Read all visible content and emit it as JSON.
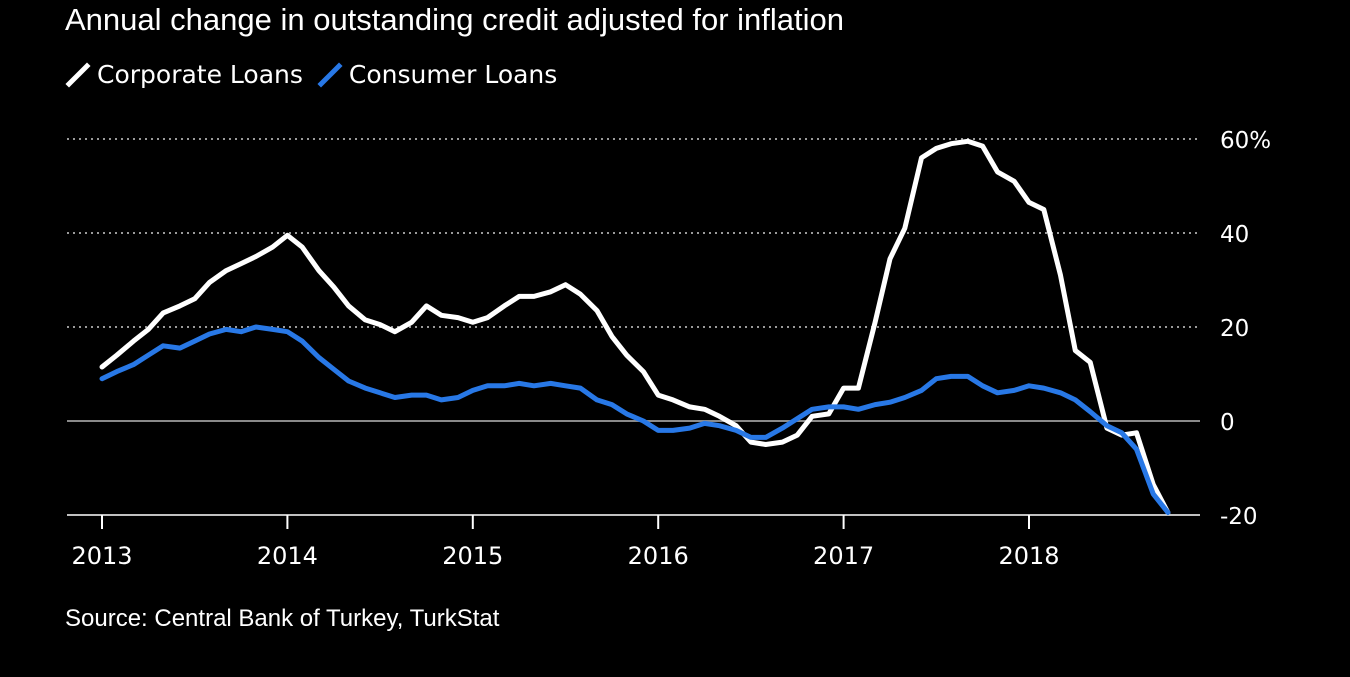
{
  "chart_data": {
    "type": "line",
    "title": "Annual change in outstanding credit adjusted for inflation",
    "source": "Source: Central Bank of Turkey, TurkStat",
    "xlabel": "",
    "ylabel": "",
    "xlim": [
      2013.0,
      2018.9
    ],
    "ylim": [
      -20,
      60
    ],
    "y_ticks": [
      60,
      40,
      20,
      0,
      -20
    ],
    "y_tick_labels": [
      "60%",
      "40",
      "20",
      "0",
      "-20"
    ],
    "x_ticks": [
      2013,
      2014,
      2015,
      2016,
      2017,
      2018
    ],
    "x_tick_labels": [
      "2013",
      "2014",
      "2015",
      "2016",
      "2017",
      "2018"
    ],
    "grid": true,
    "legend_position": "top-left",
    "series": [
      {
        "name": "Corporate Loans",
        "color": "#ffffff",
        "points": [
          [
            2013.0,
            11.5
          ],
          [
            2013.08,
            14
          ],
          [
            2013.17,
            17
          ],
          [
            2013.25,
            19.5
          ],
          [
            2013.33,
            23
          ],
          [
            2013.42,
            24.5
          ],
          [
            2013.5,
            26
          ],
          [
            2013.58,
            29.5
          ],
          [
            2013.67,
            32
          ],
          [
            2013.75,
            33.5
          ],
          [
            2013.83,
            35
          ],
          [
            2013.92,
            37
          ],
          [
            2014.0,
            39.5
          ],
          [
            2014.08,
            37
          ],
          [
            2014.17,
            32
          ],
          [
            2014.25,
            28.5
          ],
          [
            2014.33,
            24.5
          ],
          [
            2014.42,
            21.5
          ],
          [
            2014.5,
            20.5
          ],
          [
            2014.58,
            19
          ],
          [
            2014.67,
            21
          ],
          [
            2014.75,
            24.5
          ],
          [
            2014.83,
            22.5
          ],
          [
            2014.92,
            22
          ],
          [
            2015.0,
            21
          ],
          [
            2015.08,
            22
          ],
          [
            2015.17,
            24.5
          ],
          [
            2015.25,
            26.5
          ],
          [
            2015.33,
            26.5
          ],
          [
            2015.42,
            27.5
          ],
          [
            2015.5,
            29
          ],
          [
            2015.58,
            27
          ],
          [
            2015.67,
            23.5
          ],
          [
            2015.75,
            18
          ],
          [
            2015.83,
            14
          ],
          [
            2015.92,
            10.5
          ],
          [
            2016.0,
            5.5
          ],
          [
            2016.08,
            4.5
          ],
          [
            2016.17,
            3
          ],
          [
            2016.25,
            2.5
          ],
          [
            2016.33,
            1
          ],
          [
            2016.42,
            -1
          ],
          [
            2016.5,
            -4.5
          ],
          [
            2016.58,
            -5
          ],
          [
            2016.67,
            -4.5
          ],
          [
            2016.75,
            -3
          ],
          [
            2016.83,
            1
          ],
          [
            2016.92,
            1.5
          ],
          [
            2017.0,
            7
          ],
          [
            2017.08,
            7
          ],
          [
            2017.17,
            21
          ],
          [
            2017.25,
            34.5
          ],
          [
            2017.33,
            41
          ],
          [
            2017.42,
            56
          ],
          [
            2017.5,
            58
          ],
          [
            2017.58,
            59
          ],
          [
            2017.67,
            59.5
          ],
          [
            2017.75,
            58.5
          ],
          [
            2017.83,
            53
          ],
          [
            2017.92,
            51
          ],
          [
            2018.0,
            46.5
          ],
          [
            2018.08,
            45
          ],
          [
            2018.17,
            31
          ],
          [
            2018.25,
            15
          ],
          [
            2018.33,
            12.5
          ],
          [
            2018.42,
            -1.5
          ],
          [
            2018.5,
            -3
          ],
          [
            2018.58,
            -2.5
          ],
          [
            2018.67,
            -13.5
          ],
          [
            2018.75,
            -19.5
          ]
        ]
      },
      {
        "name": "Consumer Loans",
        "color": "#2878e6",
        "points": [
          [
            2013.0,
            9
          ],
          [
            2013.08,
            10.5
          ],
          [
            2013.17,
            12
          ],
          [
            2013.25,
            14
          ],
          [
            2013.33,
            16
          ],
          [
            2013.42,
            15.5
          ],
          [
            2013.5,
            17
          ],
          [
            2013.58,
            18.5
          ],
          [
            2013.67,
            19.5
          ],
          [
            2013.75,
            19
          ],
          [
            2013.83,
            20
          ],
          [
            2013.92,
            19.5
          ],
          [
            2014.0,
            19
          ],
          [
            2014.08,
            17
          ],
          [
            2014.17,
            13.5
          ],
          [
            2014.25,
            11
          ],
          [
            2014.33,
            8.5
          ],
          [
            2014.42,
            7
          ],
          [
            2014.5,
            6
          ],
          [
            2014.58,
            5
          ],
          [
            2014.67,
            5.5
          ],
          [
            2014.75,
            5.5
          ],
          [
            2014.83,
            4.5
          ],
          [
            2014.92,
            5
          ],
          [
            2015.0,
            6.5
          ],
          [
            2015.08,
            7.5
          ],
          [
            2015.17,
            7.5
          ],
          [
            2015.25,
            8
          ],
          [
            2015.33,
            7.5
          ],
          [
            2015.42,
            8
          ],
          [
            2015.5,
            7.5
          ],
          [
            2015.58,
            7
          ],
          [
            2015.67,
            4.5
          ],
          [
            2015.75,
            3.5
          ],
          [
            2015.83,
            1.5
          ],
          [
            2015.92,
            0
          ],
          [
            2016.0,
            -2
          ],
          [
            2016.08,
            -2
          ],
          [
            2016.17,
            -1.5
          ],
          [
            2016.25,
            -0.5
          ],
          [
            2016.33,
            -1
          ],
          [
            2016.42,
            -2
          ],
          [
            2016.5,
            -3.5
          ],
          [
            2016.58,
            -3.5
          ],
          [
            2016.67,
            -1.5
          ],
          [
            2016.75,
            0.5
          ],
          [
            2016.83,
            2.5
          ],
          [
            2016.92,
            3
          ],
          [
            2017.0,
            3
          ],
          [
            2017.08,
            2.5
          ],
          [
            2017.17,
            3.5
          ],
          [
            2017.25,
            4
          ],
          [
            2017.33,
            5
          ],
          [
            2017.42,
            6.5
          ],
          [
            2017.5,
            9
          ],
          [
            2017.58,
            9.5
          ],
          [
            2017.67,
            9.5
          ],
          [
            2017.75,
            7.5
          ],
          [
            2017.83,
            6
          ],
          [
            2017.92,
            6.5
          ],
          [
            2018.0,
            7.5
          ],
          [
            2018.08,
            7
          ],
          [
            2018.17,
            6
          ],
          [
            2018.25,
            4.5
          ],
          [
            2018.33,
            2
          ],
          [
            2018.42,
            -1
          ],
          [
            2018.5,
            -2.5
          ],
          [
            2018.58,
            -6
          ],
          [
            2018.67,
            -15.5
          ],
          [
            2018.75,
            -19.5
          ]
        ]
      }
    ]
  }
}
